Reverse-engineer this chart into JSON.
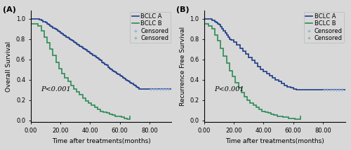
{
  "panel_A": {
    "ylabel": "Overall Survival",
    "xlabel": "Time after treatments(months)",
    "pvalue": "P<0.001",
    "xlim": [
      0,
      95
    ],
    "ylim": [
      -0.02,
      1.08
    ],
    "xticks": [
      0.0,
      20.0,
      40.0,
      60.0,
      80.0
    ],
    "yticks": [
      0.0,
      0.2,
      0.4,
      0.6,
      0.8,
      1.0
    ],
    "bclc_a_t": [
      0,
      5,
      6,
      7,
      8,
      10,
      11,
      12,
      13,
      14,
      15,
      16,
      17,
      18,
      19,
      20,
      21,
      22,
      23,
      24,
      25,
      26,
      27,
      28,
      29,
      30,
      31,
      32,
      33,
      34,
      35,
      36,
      37,
      38,
      39,
      40,
      41,
      42,
      43,
      44,
      45,
      46,
      47,
      48,
      49,
      50,
      51,
      52,
      53,
      54,
      55,
      56,
      57,
      58,
      59,
      60,
      61,
      62,
      63,
      64,
      65,
      66,
      67,
      68,
      69,
      70,
      71,
      72,
      73,
      74,
      75,
      76,
      77,
      78,
      79,
      80
    ],
    "bclc_a_s": [
      1.0,
      1.0,
      0.99,
      0.98,
      0.97,
      0.96,
      0.95,
      0.94,
      0.93,
      0.92,
      0.91,
      0.9,
      0.89,
      0.88,
      0.87,
      0.86,
      0.85,
      0.84,
      0.83,
      0.82,
      0.81,
      0.8,
      0.79,
      0.78,
      0.77,
      0.76,
      0.75,
      0.74,
      0.73,
      0.72,
      0.71,
      0.7,
      0.69,
      0.68,
      0.67,
      0.66,
      0.65,
      0.64,
      0.63,
      0.62,
      0.61,
      0.6,
      0.59,
      0.57,
      0.56,
      0.55,
      0.54,
      0.52,
      0.51,
      0.5,
      0.49,
      0.48,
      0.47,
      0.46,
      0.45,
      0.44,
      0.43,
      0.42,
      0.41,
      0.4,
      0.39,
      0.38,
      0.37,
      0.36,
      0.35,
      0.34,
      0.33,
      0.32,
      0.31,
      0.31,
      0.31,
      0.31,
      0.31,
      0.31,
      0.31,
      0.31
    ],
    "bclc_a_censored_t": [
      81,
      83,
      85,
      87,
      89,
      91,
      93
    ],
    "bclc_a_censored_s": [
      0.31,
      0.31,
      0.31,
      0.31,
      0.31,
      0.31,
      0.31
    ],
    "bclc_b_t": [
      0,
      5,
      7,
      9,
      11,
      13,
      15,
      17,
      19,
      21,
      23,
      25,
      27,
      29,
      31,
      33,
      35,
      37,
      39,
      41,
      43,
      45,
      47,
      49,
      51,
      53,
      55,
      57,
      59,
      61,
      63,
      65,
      67
    ],
    "bclc_b_s": [
      0.95,
      0.93,
      0.88,
      0.82,
      0.76,
      0.7,
      0.64,
      0.57,
      0.51,
      0.46,
      0.42,
      0.38,
      0.34,
      0.31,
      0.28,
      0.25,
      0.22,
      0.19,
      0.17,
      0.15,
      0.13,
      0.11,
      0.09,
      0.08,
      0.07,
      0.06,
      0.05,
      0.04,
      0.04,
      0.03,
      0.02,
      0.01,
      0.04
    ]
  },
  "panel_B": {
    "ylabel": "Recurrence Free Survival",
    "xlabel": "Time after treatments(months)",
    "pvalue": "P<0.001",
    "xlim": [
      0,
      95
    ],
    "ylim": [
      -0.02,
      1.08
    ],
    "xticks": [
      0.0,
      20.0,
      40.0,
      60.0,
      80.0
    ],
    "yticks": [
      0.0,
      0.2,
      0.4,
      0.6,
      0.8,
      1.0
    ],
    "bclc_a_t": [
      0,
      3,
      5,
      7,
      8,
      9,
      10,
      11,
      12,
      13,
      14,
      15,
      16,
      17,
      18,
      20,
      22,
      24,
      26,
      28,
      30,
      32,
      34,
      36,
      38,
      40,
      42,
      44,
      46,
      48,
      50,
      52,
      54,
      56,
      58,
      60,
      62,
      64,
      66,
      68,
      70,
      72,
      74,
      76,
      78,
      80
    ],
    "bclc_a_s": [
      1.0,
      1.0,
      0.98,
      0.97,
      0.96,
      0.95,
      0.94,
      0.92,
      0.9,
      0.88,
      0.86,
      0.84,
      0.82,
      0.8,
      0.79,
      0.77,
      0.74,
      0.71,
      0.68,
      0.65,
      0.62,
      0.59,
      0.56,
      0.53,
      0.5,
      0.48,
      0.46,
      0.44,
      0.42,
      0.4,
      0.38,
      0.36,
      0.34,
      0.33,
      0.32,
      0.31,
      0.3,
      0.3,
      0.3,
      0.3,
      0.3,
      0.3,
      0.3,
      0.3,
      0.3,
      0.3
    ],
    "bclc_a_censored_t": [
      81,
      83,
      85,
      87,
      89,
      91,
      93
    ],
    "bclc_a_censored_s": [
      0.3,
      0.3,
      0.3,
      0.3,
      0.3,
      0.3,
      0.3
    ],
    "bclc_b_t": [
      0,
      3,
      5,
      7,
      9,
      11,
      13,
      15,
      17,
      19,
      21,
      23,
      25,
      27,
      29,
      31,
      33,
      35,
      37,
      39,
      41,
      43,
      45,
      47,
      49,
      51,
      53,
      55,
      57,
      59,
      61,
      63,
      65
    ],
    "bclc_b_s": [
      0.95,
      0.93,
      0.9,
      0.84,
      0.78,
      0.71,
      0.63,
      0.56,
      0.49,
      0.43,
      0.37,
      0.32,
      0.27,
      0.23,
      0.2,
      0.17,
      0.15,
      0.13,
      0.11,
      0.09,
      0.08,
      0.07,
      0.06,
      0.05,
      0.04,
      0.04,
      0.03,
      0.03,
      0.02,
      0.02,
      0.01,
      0.01,
      0.04
    ]
  },
  "color_a": "#1f3c88",
  "color_b": "#2e8b57",
  "censored_color_a": "#8fa8d8",
  "censored_color_b": "#7abd7a",
  "bg_color": "#d8d8d8",
  "lw": 1.2,
  "fontsize_label": 6.5,
  "fontsize_tick": 6,
  "fontsize_pval": 7,
  "fontsize_legend": 6,
  "fontsize_panel": 8
}
